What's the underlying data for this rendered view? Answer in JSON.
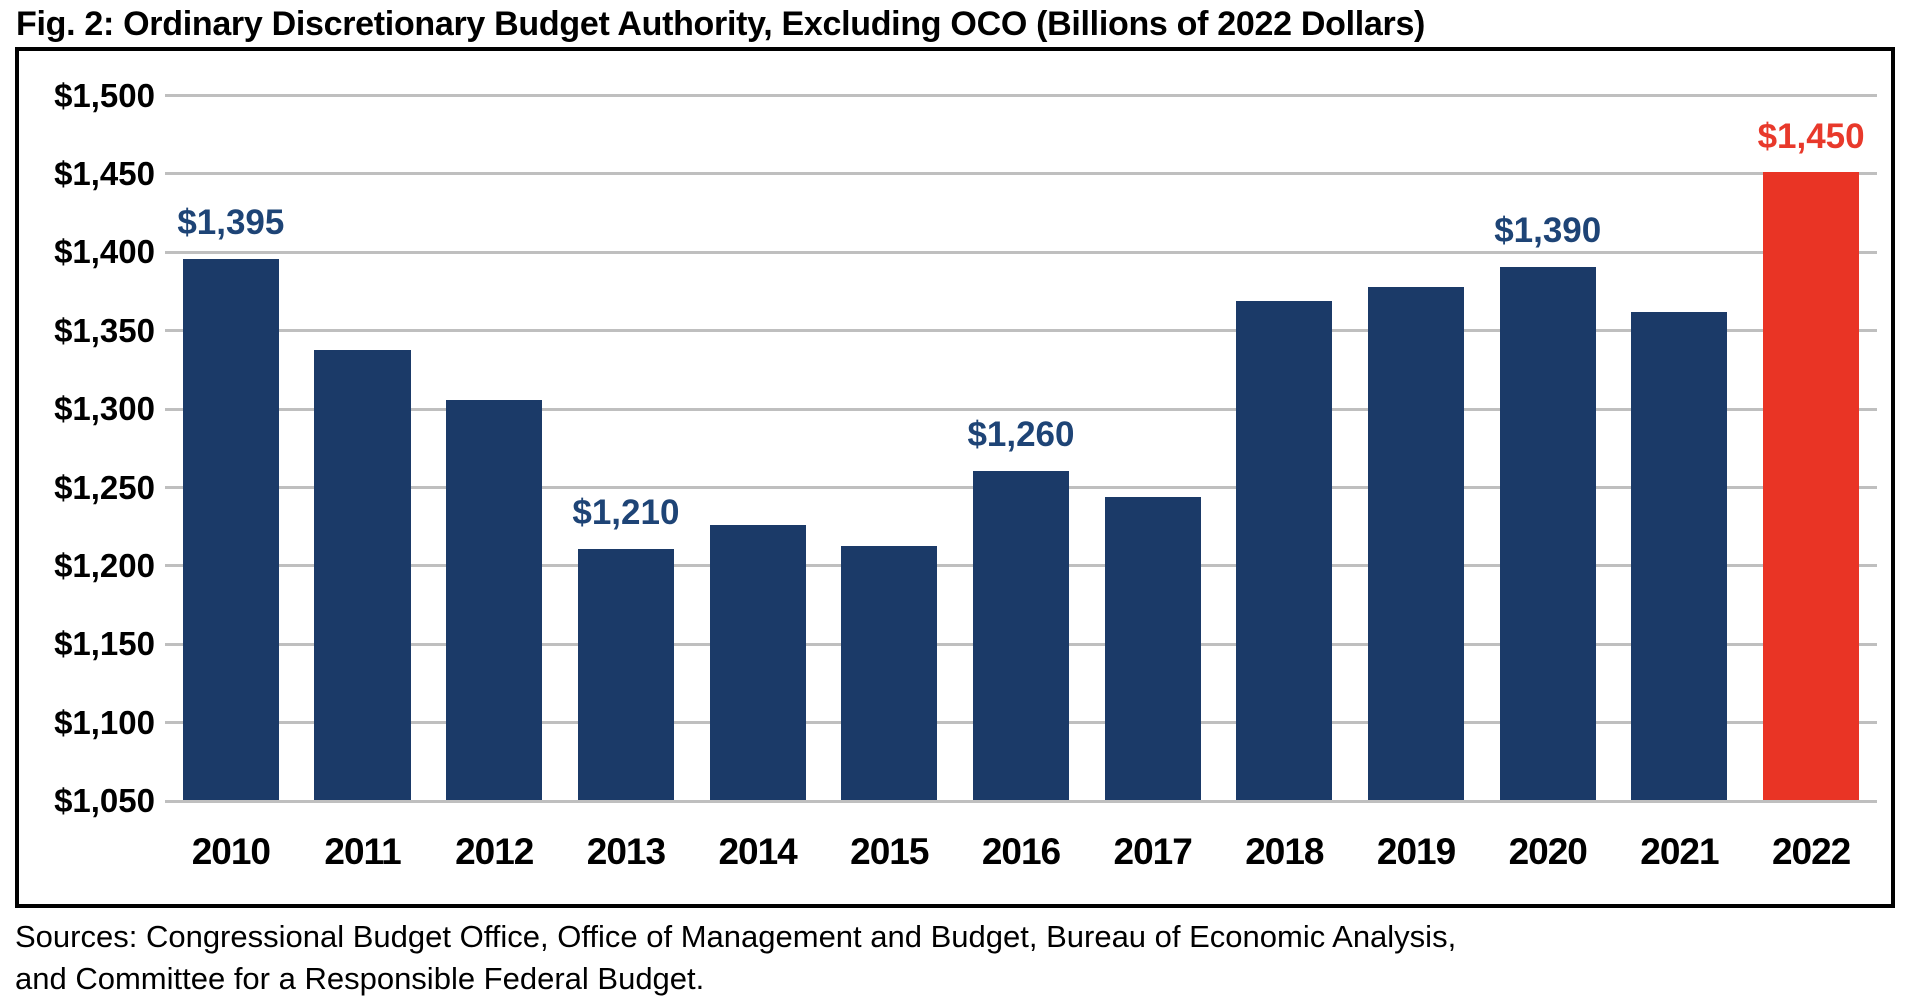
{
  "title": "Fig. 2: Ordinary Discretionary Budget Authority, Excluding OCO (Billions of 2022 Dollars)",
  "sources": "Sources: Congressional Budget Office, Office of Management and Budget, Bureau of Economic Analysis, and Committee for a Responsible Federal Budget.",
  "colors": {
    "bar_navy": "#1b3a68",
    "bar_red": "#e93425",
    "label_navy": "#1e4476",
    "label_red": "#e8392b",
    "gridline_gray": "#bfbfbf",
    "border_black": "#000000"
  },
  "chart_data": {
    "type": "bar",
    "title": "Fig. 2: Ordinary Discretionary Budget Authority, Excluding OCO (Billions of 2022 Dollars)",
    "categories": [
      "2010",
      "2011",
      "2012",
      "2013",
      "2014",
      "2015",
      "2016",
      "2017",
      "2018",
      "2019",
      "2020",
      "2021",
      "2022"
    ],
    "values": [
      1395,
      1337,
      1305,
      1210,
      1225,
      1212,
      1260,
      1243,
      1368,
      1377,
      1390,
      1361,
      1450
    ],
    "value_labels": [
      "$1,395",
      "",
      "",
      "$1,210",
      "",
      "",
      "$1,260",
      "",
      "",
      "",
      "$1,390",
      "",
      "$1,450"
    ],
    "highlight_index": 12,
    "ylim": [
      1050,
      1500
    ],
    "ytick_step": 50,
    "ytick_labels": [
      "$1,500",
      "$1,450",
      "$1,400",
      "$1,350",
      "$1,300",
      "$1,250",
      "$1,200",
      "$1,150",
      "$1,100",
      "$1,050"
    ],
    "xlabel": "",
    "ylabel": "",
    "grid": true,
    "legend": false
  }
}
